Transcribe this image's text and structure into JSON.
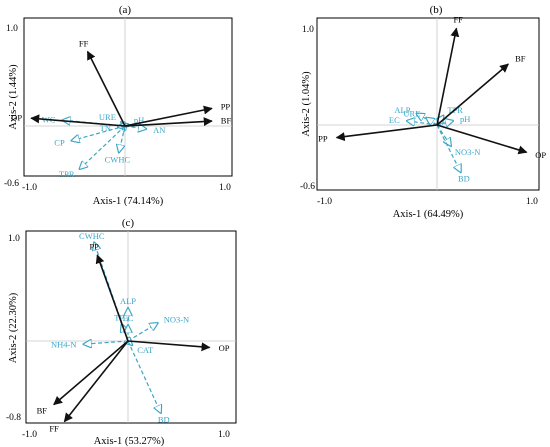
{
  "colors": {
    "black_arrow": "#111111",
    "cyan_arrow": "#3aa6c8",
    "zero_line": "#c8c8c8"
  },
  "chart_data": [
    {
      "type": "biplot",
      "panel_label": "(a)",
      "xlabel": "Axis-1  (74.14%)",
      "ylabel": "Axis-2  (1.44%)",
      "xticks": [
        "-1.0",
        "1.0"
      ],
      "yticks": [
        "1.0",
        "-0.6"
      ],
      "xlim": [
        -1.0,
        1.0
      ],
      "ylim": [
        -0.6,
        1.0
      ],
      "black_vectors": [
        {
          "name": "FF",
          "x": -0.37,
          "y": 0.76
        },
        {
          "name": "PP",
          "x": 0.86,
          "y": 0.18
        },
        {
          "name": "BF",
          "x": 0.86,
          "y": 0.05
        },
        {
          "name": "OP",
          "x": -0.93,
          "y": 0.08
        }
      ],
      "cyan_vectors": [
        {
          "name": "URE",
          "x": -0.04,
          "y": 0.04
        },
        {
          "name": "pH",
          "x": 0.03,
          "y": 0.02
        },
        {
          "name": "WC",
          "x": -0.62,
          "y": 0.06
        },
        {
          "name": "TN",
          "x": -0.07,
          "y": -0.01
        },
        {
          "name": "AN",
          "x": 0.21,
          "y": -0.03
        },
        {
          "name": "CP",
          "x": -0.53,
          "y": -0.15
        },
        {
          "name": "CWHC",
          "x": -0.06,
          "y": -0.27
        },
        {
          "name": "TPR",
          "x": -0.45,
          "y": -0.44
        }
      ]
    },
    {
      "type": "biplot",
      "panel_label": "(b)",
      "xlabel": "Axis-1  (64.49%)",
      "ylabel": "Axis-2  (1.04%)",
      "xticks": [
        "-1.0",
        "1.0"
      ],
      "yticks": [
        "1.0",
        "-0.6"
      ],
      "xlim": [
        -1.0,
        1.0
      ],
      "ylim": [
        -0.6,
        1.0
      ],
      "black_vectors": [
        {
          "name": "FF",
          "x": 0.18,
          "y": 0.92
        },
        {
          "name": "BF",
          "x": 0.66,
          "y": 0.58
        },
        {
          "name": "PP",
          "x": -0.93,
          "y": -0.12
        },
        {
          "name": "OP",
          "x": 0.83,
          "y": -0.26
        }
      ],
      "cyan_vectors": [
        {
          "name": "TPR",
          "x": 0.06,
          "y": 0.09
        },
        {
          "name": "ALP",
          "x": -0.19,
          "y": 0.11
        },
        {
          "name": "URE",
          "x": -0.1,
          "y": 0.07
        },
        {
          "name": "EC",
          "x": -0.28,
          "y": 0.04
        },
        {
          "name": "pH",
          "x": 0.15,
          "y": 0.04
        },
        {
          "name": "NO3-N",
          "x": 0.13,
          "y": -0.2
        },
        {
          "name": "BD",
          "x": 0.22,
          "y": -0.45
        }
      ]
    },
    {
      "type": "biplot",
      "panel_label": "(c)",
      "xlabel": "Axis-1  (53.27%)",
      "ylabel": "Axis-2  (22.30%)",
      "xticks": [
        "-1.0",
        "1.0"
      ],
      "yticks": [
        "1.0",
        "-0.8"
      ],
      "xlim": [
        -1.0,
        1.0
      ],
      "ylim": [
        -0.8,
        1.0
      ],
      "black_vectors": [
        {
          "name": "PP",
          "x": -0.29,
          "y": 0.81
        },
        {
          "name": "OP",
          "x": 0.77,
          "y": -0.06
        },
        {
          "name": "BF",
          "x": -0.7,
          "y": -0.6
        },
        {
          "name": "FF",
          "x": -0.6,
          "y": -0.76
        }
      ],
      "cyan_vectors": [
        {
          "name": "CWHC",
          "x": -0.32,
          "y": 0.93
        },
        {
          "name": "ALP",
          "x": 0.0,
          "y": 0.31
        },
        {
          "name": "TP",
          "x": -0.06,
          "y": 0.16
        },
        {
          "name": "EC",
          "x": 0.0,
          "y": 0.15
        },
        {
          "name": "NO3-N",
          "x": 0.28,
          "y": 0.17
        },
        {
          "name": "NH4-N",
          "x": -0.42,
          "y": -0.03
        },
        {
          "name": "CAT",
          "x": 0.04,
          "y": -0.04
        },
        {
          "name": "BD",
          "x": 0.31,
          "y": -0.68
        }
      ]
    }
  ]
}
